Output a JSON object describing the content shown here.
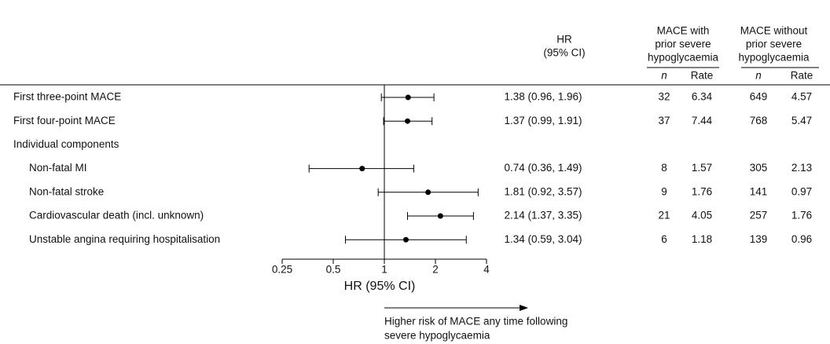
{
  "chart_data": {
    "type": "forest",
    "xlabel": "HR (95% CI)",
    "xscale": "log",
    "xlim": [
      0.25,
      4
    ],
    "xticks": [
      0.25,
      0.5,
      1,
      2,
      4
    ],
    "reference": 1,
    "color": "#000000",
    "categories": [
      "First three-point MACE",
      "First four-point MACE",
      "Individual components",
      "Non-fatal MI",
      "Non-fatal stroke",
      "Cardiovascular death (incl. unknown)",
      "Unstable angina requiring hospitalisation"
    ],
    "values": [
      1.38,
      1.37,
      null,
      0.74,
      1.81,
      2.14,
      1.34
    ],
    "lower": [
      0.96,
      0.99,
      null,
      0.36,
      0.92,
      1.37,
      0.59
    ],
    "upper": [
      1.96,
      1.91,
      null,
      1.49,
      3.57,
      3.35,
      3.04
    ],
    "value_labels": [
      "1.38 (0.96, 1.96)",
      "1.37 (0.99, 1.91)",
      null,
      "0.74 (0.36, 1.49)",
      "1.81 (0.92, 3.57)",
      "2.14 (1.37, 3.35)",
      "1.34 (0.59, 3.04)"
    ],
    "annotation": [
      "Higher risk of MACE any time following",
      "severe hypoglycaemia"
    ]
  },
  "table": {
    "hr_header": [
      "HR",
      "(95% CI)"
    ],
    "groups": [
      {
        "header": [
          "MACE with",
          "prior severe",
          "hypoglycaemia"
        ],
        "subheaders": [
          "n",
          "Rate"
        ],
        "n": [
          32,
          37,
          null,
          8,
          9,
          21,
          6
        ],
        "rate": [
          6.34,
          7.44,
          null,
          1.57,
          1.76,
          4.05,
          1.18
        ]
      },
      {
        "header": [
          "MACE without",
          "prior severe",
          "hypoglycaemia"
        ],
        "subheaders": [
          "n",
          "Rate"
        ],
        "n": [
          649,
          768,
          null,
          305,
          141,
          257,
          139
        ],
        "rate": [
          4.57,
          5.47,
          null,
          2.13,
          0.97,
          1.76,
          0.96
        ]
      }
    ]
  }
}
